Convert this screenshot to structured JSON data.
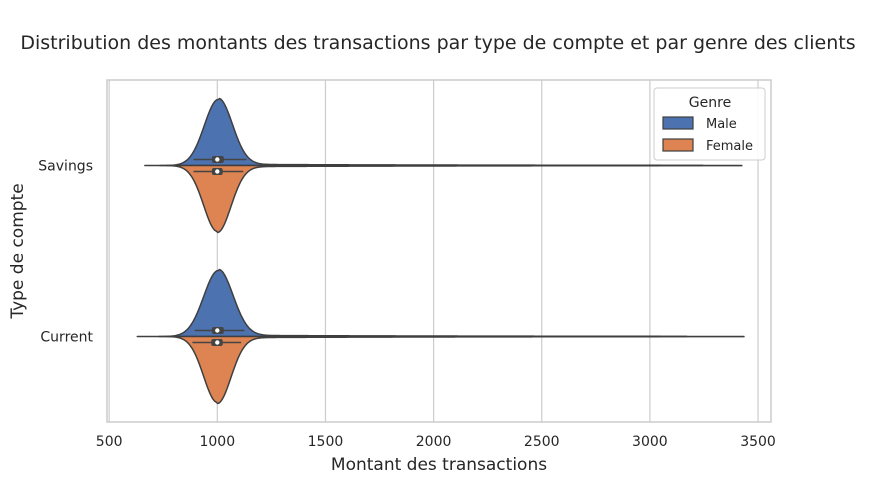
{
  "chart_data": {
    "type": "violin",
    "orientation": "horizontal",
    "split": true,
    "title": "Distribution des montants des transactions par type de compte et par genre des clients",
    "xlabel": "Montant des transactions",
    "ylabel": "Type de compte",
    "xlim": [
      490,
      3560
    ],
    "xticks": [
      500,
      1000,
      1500,
      2000,
      2500,
      3000,
      3500
    ],
    "categories": [
      "Savings",
      "Current"
    ],
    "grid": true,
    "legend": {
      "title": "Genre",
      "placement": "top-right"
    },
    "series": [
      {
        "name": "Male",
        "color": "#4c72b0",
        "stats": [
          {
            "category": "Savings",
            "min": 735,
            "max": 3245,
            "q1": 975,
            "median": 1000,
            "q3": 1030,
            "whisker_low": 890,
            "whisker_high": 1135,
            "mode": 1005,
            "spread": 65
          },
          {
            "category": "Current",
            "min": 730,
            "max": 3170,
            "q1": 975,
            "median": 1000,
            "q3": 1030,
            "whisker_low": 895,
            "whisker_high": 1125,
            "mode": 1005,
            "spread": 68
          }
        ]
      },
      {
        "name": "Female",
        "color": "#dd8452",
        "stats": [
          {
            "category": "Savings",
            "min": 665,
            "max": 3425,
            "q1": 975,
            "median": 1000,
            "q3": 1025,
            "whisker_low": 890,
            "whisker_high": 1120,
            "mode": 1000,
            "spread": 63
          },
          {
            "category": "Current",
            "min": 630,
            "max": 3435,
            "q1": 972,
            "median": 1000,
            "q3": 1025,
            "whisker_low": 885,
            "whisker_high": 1110,
            "mode": 1000,
            "spread": 63
          }
        ]
      }
    ]
  }
}
